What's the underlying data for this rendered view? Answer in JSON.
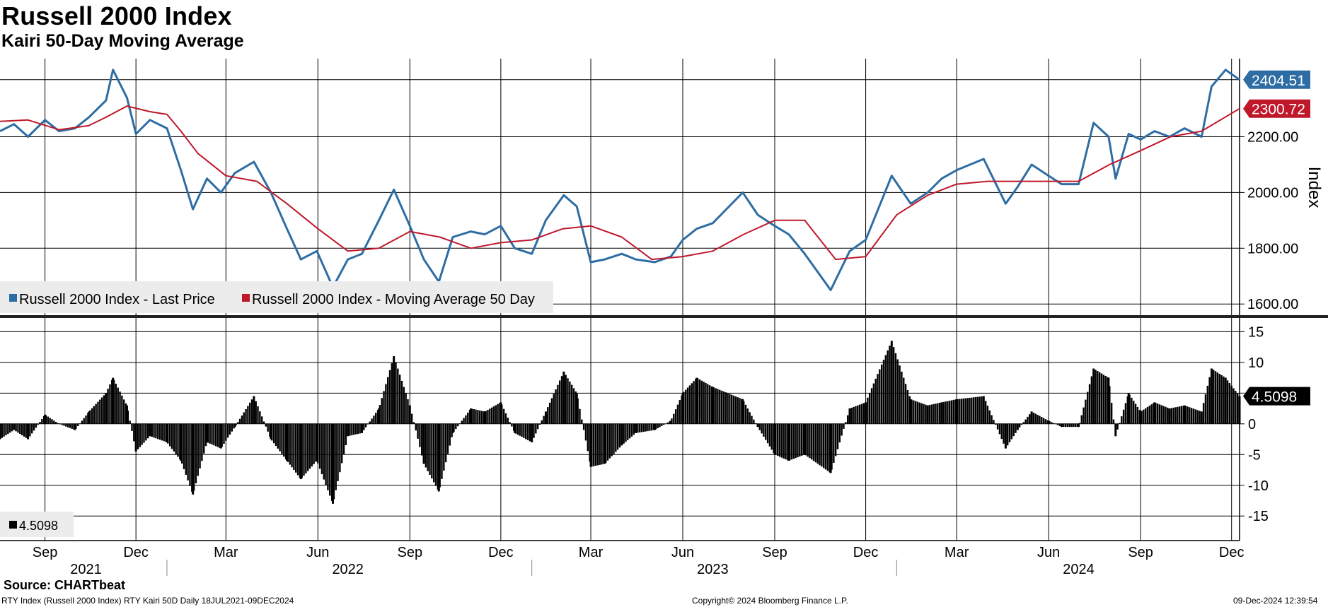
{
  "header": {
    "title": "Russell 2000 Index",
    "subtitle": "Kairi 50-Day Moving Average"
  },
  "footer": {
    "source": "Source: CHARTbeat",
    "ticker_line": "RTY Index (Russell 2000 Index) RTY Kairi 50D  Daily 18JUL2021-09DEC2024",
    "copyright": "Copyright© 2024 Bloomberg Finance L.P.",
    "timestamp": "09-Dec-2024 12:39:54"
  },
  "colors": {
    "price": "#2e6da4",
    "ma": "#c0182b",
    "kairi": "#000000",
    "grid": "#000000"
  },
  "chart_data": [
    {
      "type": "line",
      "title": "Russell 2000 Index",
      "ylabel": "Index",
      "ylim": [
        1560,
        2480
      ],
      "yticks": [
        1600,
        1800,
        2000,
        2200
      ],
      "ytick_labels": [
        "1600.00",
        "1800.00",
        "2000.00",
        "2200.00"
      ],
      "x_start": "2021-07-18",
      "x_end": "2024-12-09",
      "legend_placement": "bottom-left",
      "last_value_labels": [
        {
          "series": "price",
          "text": "2404.51"
        },
        {
          "series": "ma",
          "text": "2300.72"
        }
      ],
      "series": [
        {
          "name": "Russell 2000 Index - Last Price",
          "color": "#2e6da4",
          "x": [
            "2021-07-18",
            "2021-08-01",
            "2021-08-15",
            "2021-09-01",
            "2021-09-15",
            "2021-10-01",
            "2021-10-15",
            "2021-11-01",
            "2021-11-08",
            "2021-11-22",
            "2021-12-01",
            "2021-12-15",
            "2022-01-01",
            "2022-01-15",
            "2022-01-27",
            "2022-02-10",
            "2022-02-24",
            "2022-03-10",
            "2022-03-29",
            "2022-04-15",
            "2022-05-01",
            "2022-05-15",
            "2022-05-31",
            "2022-06-16",
            "2022-07-01",
            "2022-07-15",
            "2022-08-01",
            "2022-08-16",
            "2022-09-01",
            "2022-09-15",
            "2022-09-30",
            "2022-10-14",
            "2022-11-01",
            "2022-11-15",
            "2022-12-01",
            "2022-12-15",
            "2023-01-01",
            "2023-01-15",
            "2023-02-02",
            "2023-02-15",
            "2023-03-01",
            "2023-03-15",
            "2023-04-01",
            "2023-04-15",
            "2023-05-04",
            "2023-05-20",
            "2023-06-01",
            "2023-06-15",
            "2023-07-01",
            "2023-07-31",
            "2023-08-15",
            "2023-09-01",
            "2023-09-15",
            "2023-10-01",
            "2023-10-27",
            "2023-11-15",
            "2023-12-01",
            "2023-12-27",
            "2024-01-15",
            "2024-02-01",
            "2024-02-15",
            "2024-03-01",
            "2024-03-28",
            "2024-04-19",
            "2024-05-01",
            "2024-05-15",
            "2024-06-01",
            "2024-06-14",
            "2024-07-01",
            "2024-07-16",
            "2024-07-31",
            "2024-08-07",
            "2024-08-20",
            "2024-09-01",
            "2024-09-15",
            "2024-09-30",
            "2024-10-15",
            "2024-11-01",
            "2024-11-11",
            "2024-11-25",
            "2024-12-09"
          ],
          "values": [
            2220,
            2245,
            2200,
            2260,
            2220,
            2230,
            2270,
            2330,
            2440,
            2340,
            2210,
            2260,
            2230,
            2080,
            1940,
            2050,
            2000,
            2070,
            2110,
            2000,
            1870,
            1760,
            1790,
            1660,
            1760,
            1780,
            1900,
            2010,
            1880,
            1760,
            1680,
            1840,
            1860,
            1850,
            1880,
            1800,
            1780,
            1900,
            1990,
            1950,
            1750,
            1760,
            1780,
            1760,
            1750,
            1770,
            1830,
            1870,
            1890,
            2000,
            1920,
            1880,
            1850,
            1780,
            1650,
            1790,
            1830,
            2060,
            1960,
            2000,
            2050,
            2080,
            2120,
            1960,
            2020,
            2100,
            2060,
            2030,
            2030,
            2250,
            2200,
            2050,
            2210,
            2190,
            2220,
            2200,
            2230,
            2200,
            2380,
            2440,
            2404.51
          ]
        },
        {
          "name": "Russell 2000 Index - Moving Average 50 Day",
          "color": "#c0182b",
          "x": [
            "2021-07-18",
            "2021-08-15",
            "2021-09-15",
            "2021-10-15",
            "2021-11-01",
            "2021-11-22",
            "2021-12-15",
            "2022-01-01",
            "2022-01-15",
            "2022-02-01",
            "2022-03-01",
            "2022-04-01",
            "2022-05-01",
            "2022-06-01",
            "2022-07-01",
            "2022-08-01",
            "2022-09-01",
            "2022-10-01",
            "2022-11-01",
            "2022-12-01",
            "2023-01-01",
            "2023-02-01",
            "2023-03-01",
            "2023-04-01",
            "2023-05-01",
            "2023-06-01",
            "2023-07-01",
            "2023-08-01",
            "2023-09-01",
            "2023-10-01",
            "2023-11-01",
            "2023-12-01",
            "2024-01-01",
            "2024-02-01",
            "2024-03-01",
            "2024-04-01",
            "2024-05-01",
            "2024-06-01",
            "2024-07-01",
            "2024-08-01",
            "2024-09-01",
            "2024-10-01",
            "2024-11-01",
            "2024-12-09"
          ],
          "values": [
            2255,
            2260,
            2225,
            2240,
            2270,
            2310,
            2290,
            2280,
            2220,
            2140,
            2060,
            2040,
            1960,
            1870,
            1790,
            1800,
            1860,
            1840,
            1800,
            1820,
            1830,
            1870,
            1880,
            1840,
            1760,
            1770,
            1790,
            1850,
            1900,
            1900,
            1760,
            1770,
            1920,
            1990,
            2030,
            2040,
            2040,
            2040,
            2040,
            2100,
            2150,
            2200,
            2220,
            2300.72
          ]
        }
      ]
    },
    {
      "type": "bar",
      "title": "Kairi 50-Day Moving Average",
      "ylim": [
        -19,
        17
      ],
      "yticks": [
        15,
        10,
        5,
        0,
        -5,
        -10,
        -15
      ],
      "ytick_labels": [
        "15",
        "10",
        "5",
        "0",
        "-5",
        "-10",
        "-15"
      ],
      "last_value_label": "4.5098",
      "legend": {
        "placement": "bottom-left",
        "entries": [
          "4.5098"
        ]
      },
      "series": [
        {
          "name": "Kairi 50D",
          "color": "#000000",
          "x": [
            "2021-07-18",
            "2021-08-01",
            "2021-08-15",
            "2021-09-01",
            "2021-09-15",
            "2021-10-01",
            "2021-10-15",
            "2021-11-01",
            "2021-11-08",
            "2021-11-22",
            "2021-12-01",
            "2021-12-15",
            "2022-01-01",
            "2022-01-15",
            "2022-01-27",
            "2022-02-10",
            "2022-02-24",
            "2022-03-10",
            "2022-03-29",
            "2022-04-15",
            "2022-05-01",
            "2022-05-15",
            "2022-05-31",
            "2022-06-16",
            "2022-07-01",
            "2022-07-15",
            "2022-08-01",
            "2022-08-16",
            "2022-09-01",
            "2022-09-15",
            "2022-09-30",
            "2022-10-14",
            "2022-11-01",
            "2022-11-15",
            "2022-12-01",
            "2022-12-15",
            "2023-01-01",
            "2023-01-15",
            "2023-02-02",
            "2023-02-15",
            "2023-03-01",
            "2023-03-15",
            "2023-04-01",
            "2023-04-15",
            "2023-05-04",
            "2023-05-20",
            "2023-06-01",
            "2023-06-15",
            "2023-07-01",
            "2023-07-31",
            "2023-08-15",
            "2023-09-01",
            "2023-09-15",
            "2023-10-01",
            "2023-10-27",
            "2023-11-15",
            "2023-12-01",
            "2023-12-27",
            "2024-01-15",
            "2024-02-01",
            "2024-02-15",
            "2024-03-01",
            "2024-03-28",
            "2024-04-19",
            "2024-05-01",
            "2024-05-15",
            "2024-06-01",
            "2024-06-14",
            "2024-07-01",
            "2024-07-16",
            "2024-07-31",
            "2024-08-07",
            "2024-08-20",
            "2024-09-01",
            "2024-09-15",
            "2024-09-30",
            "2024-10-15",
            "2024-11-01",
            "2024-11-11",
            "2024-11-25",
            "2024-12-09"
          ],
          "values": [
            -2.5,
            -1.0,
            -2.5,
            1.5,
            0.0,
            -1.0,
            2.0,
            5.0,
            7.5,
            3.0,
            -4.5,
            -2.0,
            -3.0,
            -6.0,
            -11.5,
            -3.0,
            -4.0,
            -0.5,
            4.5,
            -2.5,
            -6.0,
            -9.0,
            -6.0,
            -13.0,
            -2.0,
            -1.5,
            2.5,
            11.0,
            3.0,
            -6.5,
            -11.0,
            -1.5,
            2.5,
            2.0,
            3.5,
            -1.5,
            -3.0,
            2.0,
            8.5,
            5.0,
            -7.0,
            -6.5,
            -3.5,
            -1.5,
            -1.0,
            0.5,
            5.0,
            7.5,
            6.0,
            4.0,
            -0.5,
            -5.0,
            -6.0,
            -5.0,
            -8.0,
            2.5,
            3.5,
            13.5,
            4.0,
            3.0,
            3.5,
            4.0,
            4.5,
            -4.0,
            -1.0,
            2.0,
            0.5,
            -0.5,
            -0.5,
            9.0,
            7.5,
            -2.0,
            5.0,
            2.0,
            3.5,
            2.5,
            3.0,
            2.0,
            9.0,
            7.5,
            4.5098
          ]
        }
      ]
    }
  ],
  "x_axis": {
    "months": [
      {
        "label": "Sep",
        "date": "2021-09-01"
      },
      {
        "label": "Dec",
        "date": "2021-12-01"
      },
      {
        "label": "Mar",
        "date": "2022-03-01"
      },
      {
        "label": "Jun",
        "date": "2022-06-01"
      },
      {
        "label": "Sep",
        "date": "2022-09-01"
      },
      {
        "label": "Dec",
        "date": "2022-12-01"
      },
      {
        "label": "Mar",
        "date": "2023-03-01"
      },
      {
        "label": "Jun",
        "date": "2023-06-01"
      },
      {
        "label": "Sep",
        "date": "2023-09-01"
      },
      {
        "label": "Dec",
        "date": "2023-12-01"
      },
      {
        "label": "Mar",
        "date": "2024-03-01"
      },
      {
        "label": "Jun",
        "date": "2024-06-01"
      },
      {
        "label": "Sep",
        "date": "2024-09-01"
      },
      {
        "label": "Dec",
        "date": "2024-12-01"
      }
    ],
    "years": [
      {
        "label": "2021",
        "date": "2021-10-12"
      },
      {
        "label": "2022",
        "date": "2022-07-01"
      },
      {
        "label": "2023",
        "date": "2023-07-01"
      },
      {
        "label": "2024",
        "date": "2024-07-01"
      }
    ],
    "year_separators": [
      "2022-01-01",
      "2023-01-01",
      "2024-01-01"
    ]
  }
}
